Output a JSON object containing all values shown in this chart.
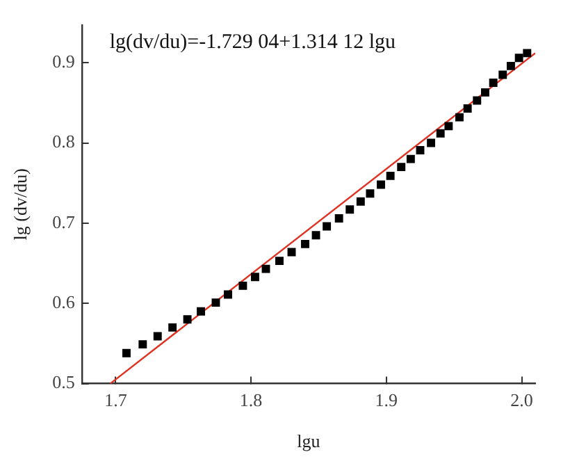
{
  "chart_data": {
    "type": "scatter",
    "xlabel": "lgu",
    "ylabel": "lg (dv/du)",
    "annotations": [
      "lg(dv/du)=-1.729 04+1.314 12 lgu"
    ],
    "xlim": [
      1.675,
      2.01
    ],
    "ylim": [
      0.5,
      0.947
    ],
    "xticks": [
      {
        "value": 1.7,
        "label": "1.7"
      },
      {
        "value": 1.8,
        "label": "1.8"
      },
      {
        "value": 1.9,
        "label": "1.9"
      },
      {
        "value": 2.0,
        "label": "2.0"
      }
    ],
    "yticks": [
      {
        "value": 0.5,
        "label": "0.5"
      },
      {
        "value": 0.6,
        "label": "0.6"
      },
      {
        "value": 0.7,
        "label": "0.7"
      },
      {
        "value": 0.8,
        "label": "0.8"
      },
      {
        "value": 0.9,
        "label": "0.9"
      }
    ],
    "grid": false,
    "legend": false,
    "series": [
      {
        "marker": "square",
        "color": "#000000",
        "x": [
          1.708,
          1.72,
          1.731,
          1.742,
          1.753,
          1.763,
          1.774,
          1.783,
          1.794,
          1.803,
          1.811,
          1.821,
          1.83,
          1.84,
          1.848,
          1.856,
          1.865,
          1.873,
          1.881,
          1.888,
          1.896,
          1.903,
          1.911,
          1.918,
          1.925,
          1.933,
          1.94,
          1.946,
          1.954,
          1.96,
          1.967,
          1.973,
          1.979,
          1.986,
          1.992,
          1.998,
          2.004
        ],
        "values": [
          0.538,
          0.549,
          0.559,
          0.57,
          0.58,
          0.59,
          0.601,
          0.611,
          0.622,
          0.633,
          0.643,
          0.653,
          0.664,
          0.674,
          0.685,
          0.696,
          0.706,
          0.717,
          0.727,
          0.737,
          0.748,
          0.759,
          0.77,
          0.78,
          0.791,
          0.8,
          0.812,
          0.821,
          0.832,
          0.843,
          0.853,
          0.863,
          0.875,
          0.885,
          0.896,
          0.906,
          0.912
        ]
      },
      {
        "type": "line",
        "color": "#e03020",
        "line_style": "solid",
        "x": [
          1.696,
          2.01
        ],
        "values": [
          0.5,
          0.912
        ]
      }
    ]
  }
}
